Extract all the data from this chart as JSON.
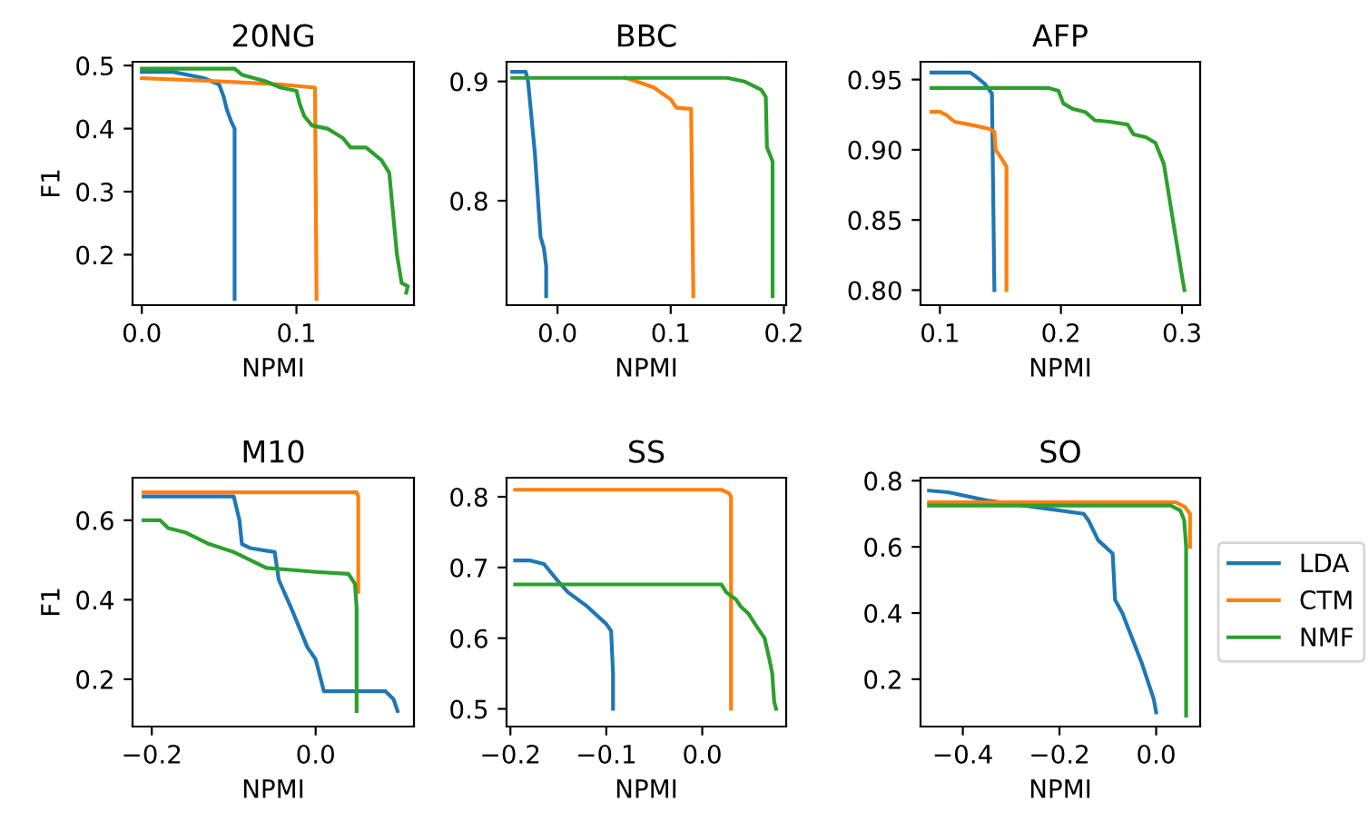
{
  "chart_data": [
    {
      "type": "line",
      "title": "20NG",
      "xlabel": "NPMI",
      "ylabel": "F1",
      "xlim": [
        -0.006,
        0.176
      ],
      "ylim": [
        0.12,
        0.506
      ],
      "xticks": [
        {
          "value": 0.0,
          "label": "0.0"
        },
        0.1
      ],
      "yticks": [
        0.2,
        0.3,
        0.4,
        0.5
      ],
      "grid": false,
      "series": [
        {
          "color": "#1f77b4",
          "x": [
            0.0,
            0.02,
            0.04,
            0.05,
            0.053,
            0.055,
            0.058,
            0.06,
            0.06
          ],
          "values": [
            0.49,
            0.49,
            0.48,
            0.47,
            0.45,
            0.43,
            0.41,
            0.4,
            0.13
          ]
        },
        {
          "color": "#ff7f0e",
          "x": [
            0.0,
            0.05,
            0.09,
            0.112,
            0.113
          ],
          "values": [
            0.48,
            0.475,
            0.47,
            0.465,
            0.13
          ]
        },
        {
          "color": "#2ca02c",
          "x": [
            0.0,
            0.06,
            0.065,
            0.08,
            0.09,
            0.1,
            0.102,
            0.105,
            0.11,
            0.12,
            0.13,
            0.135,
            0.145,
            0.155,
            0.16,
            0.165,
            0.168,
            0.172,
            0.171
          ],
          "values": [
            0.495,
            0.495,
            0.485,
            0.475,
            0.465,
            0.46,
            0.44,
            0.42,
            0.405,
            0.4,
            0.385,
            0.37,
            0.37,
            0.35,
            0.33,
            0.2,
            0.155,
            0.15,
            0.14
          ]
        }
      ]
    },
    {
      "type": "line",
      "title": "BBC",
      "xlabel": "NPMI",
      "xlim": [
        -0.045,
        0.202
      ],
      "ylim": [
        0.7125,
        0.9165
      ],
      "xticks": [
        {
          "value": 0.0,
          "label": "0.0"
        },
        0.1,
        0.2
      ],
      "yticks": [
        0.8,
        0.9
      ],
      "grid": false,
      "series": [
        {
          "color": "#1f77b4",
          "x": [
            -0.04,
            -0.028,
            -0.026,
            -0.02,
            -0.015,
            -0.012,
            -0.01,
            -0.01
          ],
          "values": [
            0.908,
            0.908,
            0.9,
            0.84,
            0.77,
            0.76,
            0.745,
            0.72
          ]
        },
        {
          "color": "#ff7f0e",
          "x": [
            0.06,
            0.07,
            0.085,
            0.1,
            0.105,
            0.118,
            0.12
          ],
          "values": [
            0.903,
            0.9,
            0.895,
            0.885,
            0.878,
            0.877,
            0.72
          ]
        },
        {
          "color": "#2ca02c",
          "x": [
            -0.04,
            0.15,
            0.165,
            0.18,
            0.184,
            0.185,
            0.19,
            0.19
          ],
          "values": [
            0.903,
            0.903,
            0.9,
            0.893,
            0.887,
            0.845,
            0.833,
            0.72
          ]
        }
      ]
    },
    {
      "type": "line",
      "title": "AFP",
      "xlabel": "NPMI",
      "xlim": [
        0.084,
        0.315
      ],
      "ylim": [
        0.7893,
        0.9627
      ],
      "xticks": [
        0.1,
        0.2,
        0.3
      ],
      "yticks": [
        {
          "value": 0.8,
          "label": "0.80"
        },
        {
          "value": 0.85,
          "label": "0.85"
        },
        {
          "value": 0.9,
          "label": "0.90"
        },
        {
          "value": 0.95,
          "label": "0.95"
        }
      ],
      "grid": false,
      "series": [
        {
          "color": "#1f77b4",
          "x": [
            0.093,
            0.125,
            0.13,
            0.137,
            0.143,
            0.145
          ],
          "values": [
            0.955,
            0.955,
            0.952,
            0.947,
            0.94,
            0.8
          ]
        },
        {
          "color": "#ff7f0e",
          "x": [
            0.093,
            0.1,
            0.105,
            0.112,
            0.13,
            0.14,
            0.145,
            0.146,
            0.15,
            0.155,
            0.155
          ],
          "values": [
            0.927,
            0.927,
            0.925,
            0.92,
            0.917,
            0.915,
            0.913,
            0.9,
            0.895,
            0.888,
            0.8
          ]
        },
        {
          "color": "#2ca02c",
          "x": [
            0.093,
            0.19,
            0.198,
            0.202,
            0.21,
            0.22,
            0.228,
            0.24,
            0.255,
            0.26,
            0.27,
            0.278,
            0.285,
            0.3,
            0.302
          ],
          "values": [
            0.944,
            0.944,
            0.942,
            0.933,
            0.929,
            0.927,
            0.921,
            0.92,
            0.918,
            0.911,
            0.909,
            0.905,
            0.89,
            0.81,
            0.8
          ]
        }
      ]
    },
    {
      "type": "line",
      "title": "M10",
      "xlabel": "NPMI",
      "ylabel": "F1",
      "xlim": [
        -0.2235,
        0.12
      ],
      "ylim": [
        0.081,
        0.707
      ],
      "xticks": [
        {
          "value": -0.2,
          "label": "−0.2"
        },
        {
          "value": 0.0,
          "label": "0.0"
        }
      ],
      "yticks": [
        0.2,
        0.4,
        0.6
      ],
      "grid": false,
      "series": [
        {
          "color": "#1f77b4",
          "x": [
            -0.21,
            -0.1,
            -0.093,
            -0.09,
            -0.08,
            -0.05,
            -0.045,
            -0.03,
            -0.01,
            0.0,
            0.01,
            0.085,
            0.095,
            0.1
          ],
          "values": [
            0.66,
            0.66,
            0.6,
            0.54,
            0.53,
            0.52,
            0.45,
            0.38,
            0.28,
            0.25,
            0.17,
            0.17,
            0.15,
            0.12
          ]
        },
        {
          "color": "#ff7f0e",
          "x": [
            -0.21,
            0.05,
            0.052,
            0.052
          ],
          "values": [
            0.67,
            0.67,
            0.66,
            0.42
          ]
        },
        {
          "color": "#2ca02c",
          "x": [
            -0.21,
            -0.19,
            -0.18,
            -0.16,
            -0.13,
            -0.1,
            -0.08,
            -0.06,
            -0.03,
            0.0,
            0.04,
            0.048,
            0.05,
            0.05
          ],
          "values": [
            0.6,
            0.6,
            0.58,
            0.57,
            0.54,
            0.52,
            0.5,
            0.48,
            0.475,
            0.47,
            0.465,
            0.44,
            0.38,
            0.12
          ]
        }
      ]
    },
    {
      "type": "line",
      "title": "SS",
      "xlabel": "NPMI",
      "xlim": [
        -0.204,
        0.0875
      ],
      "ylim": [
        0.475,
        0.827
      ],
      "xticks": [
        {
          "value": -0.2,
          "label": "−0.2"
        },
        {
          "value": -0.1,
          "label": "−0.1"
        },
        {
          "value": 0.0,
          "label": "0.0"
        }
      ],
      "yticks": [
        0.5,
        0.6,
        0.7,
        0.8
      ],
      "grid": false,
      "series": [
        {
          "color": "#1f77b4",
          "x": [
            -0.195,
            -0.18,
            -0.165,
            -0.15,
            -0.14,
            -0.12,
            -0.1,
            -0.095,
            -0.093,
            -0.093
          ],
          "values": [
            0.71,
            0.71,
            0.705,
            0.68,
            0.665,
            0.645,
            0.62,
            0.61,
            0.55,
            0.5
          ]
        },
        {
          "color": "#ff7f0e",
          "x": [
            -0.195,
            0.02,
            0.028,
            0.03,
            0.03
          ],
          "values": [
            0.81,
            0.81,
            0.805,
            0.8,
            0.5
          ]
        },
        {
          "color": "#2ca02c",
          "x": [
            -0.195,
            0.02,
            0.025,
            0.035,
            0.04,
            0.048,
            0.055,
            0.065,
            0.07,
            0.073,
            0.075,
            0.077
          ],
          "values": [
            0.676,
            0.676,
            0.665,
            0.655,
            0.645,
            0.635,
            0.62,
            0.6,
            0.57,
            0.55,
            0.51,
            0.5
          ]
        }
      ]
    },
    {
      "type": "line",
      "title": "SO",
      "xlabel": "NPMI",
      "xlim": [
        -0.4875,
        0.091
      ],
      "ylim": [
        0.057,
        0.809
      ],
      "xticks": [
        {
          "value": -0.4,
          "label": "−0.4"
        },
        {
          "value": -0.2,
          "label": "−0.2"
        },
        {
          "value": 0.0,
          "label": "0.0"
        }
      ],
      "yticks": [
        0.2,
        0.4,
        0.6,
        0.8
      ],
      "grid": false,
      "legend": "right",
      "series": [
        {
          "name": "LDA",
          "color": "#1f77b4",
          "x": [
            -0.47,
            -0.43,
            -0.35,
            -0.25,
            -0.15,
            -0.14,
            -0.12,
            -0.09,
            -0.085,
            -0.07,
            -0.03,
            -0.005,
            0.0
          ],
          "values": [
            0.77,
            0.765,
            0.74,
            0.72,
            0.7,
            0.68,
            0.62,
            0.58,
            0.44,
            0.4,
            0.25,
            0.14,
            0.1
          ]
        },
        {
          "name": "CTM",
          "color": "#ff7f0e",
          "x": [
            -0.47,
            0.04,
            0.06,
            0.07,
            0.07
          ],
          "values": [
            0.735,
            0.735,
            0.72,
            0.7,
            0.6
          ]
        },
        {
          "name": "NMF",
          "color": "#2ca02c",
          "x": [
            -0.47,
            0.03,
            0.05,
            0.058,
            0.062,
            0.062
          ],
          "values": [
            0.725,
            0.725,
            0.71,
            0.68,
            0.6,
            0.09
          ]
        }
      ]
    }
  ]
}
